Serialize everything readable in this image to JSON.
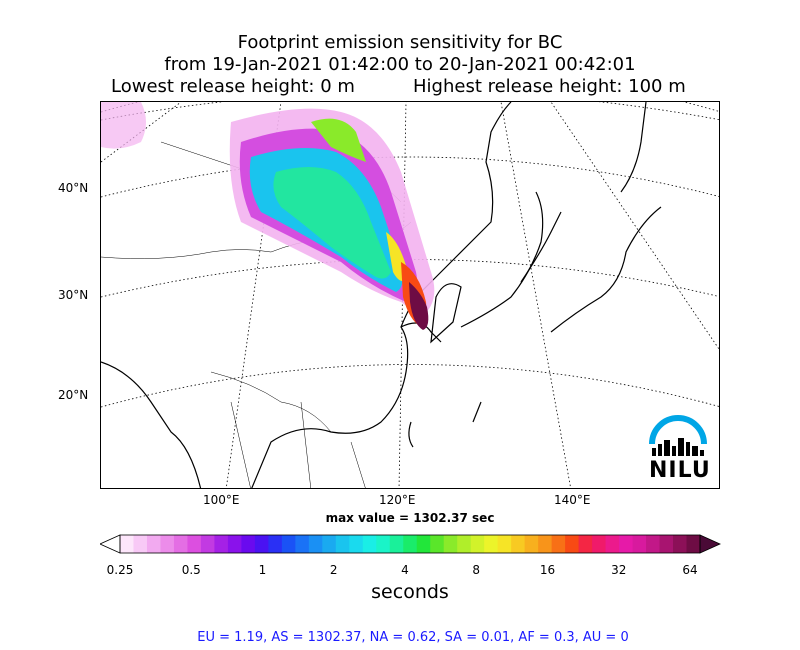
{
  "title": {
    "line1": "Footprint emission sensitivity for BC",
    "line2": "from 19-Jan-2021 01:42:00 to 20-Jan-2021 00:42:01",
    "lowest": "Lowest release height: 0 m",
    "highest": "Highest release height: 100 m"
  },
  "axes": {
    "lat_labels": [
      "40°N",
      "30°N",
      "20°N"
    ],
    "lon_labels": [
      "100°E",
      "120°E",
      "140°E"
    ]
  },
  "max_value": "max value = 1302.37 sec",
  "colorbar": {
    "ticks": [
      "0.25",
      "0.5",
      "1",
      "2",
      "4",
      "8",
      "16",
      "32",
      "64"
    ],
    "label": "seconds",
    "colors": [
      "#fde6fb",
      "#f8c9f6",
      "#f2aaf0",
      "#ec8cea",
      "#e46ee4",
      "#dc4fe0",
      "#c23ae2",
      "#a521e6",
      "#8a12eb",
      "#6a0aef",
      "#4a12f2",
      "#2a30f5",
      "#1a52f6",
      "#1a72f6",
      "#1a90f4",
      "#1aaaf0",
      "#1ac4ee",
      "#1adaee",
      "#1aeee6",
      "#1af4c8",
      "#1af09a",
      "#1aec6a",
      "#22e63a",
      "#5ae62a",
      "#8aea2a",
      "#b0ee2a",
      "#d2f22a",
      "#ecf42a",
      "#f6e426",
      "#f8ca22",
      "#f8b01e",
      "#f8941a",
      "#f87016",
      "#f84a14",
      "#f42644",
      "#f01a6a",
      "#ec1a8c",
      "#e61aa8",
      "#d81a9e",
      "#c21888",
      "#a81470",
      "#8c1058",
      "#6e0c44"
    ]
  },
  "regions_text": "EU = 1.19,  AS = 1302.37,  NA = 0.62,  SA = 0.01,  AF = 0.3,  AU = 0",
  "logo": {
    "text": "NILU",
    "color": "#00a6e6"
  }
}
